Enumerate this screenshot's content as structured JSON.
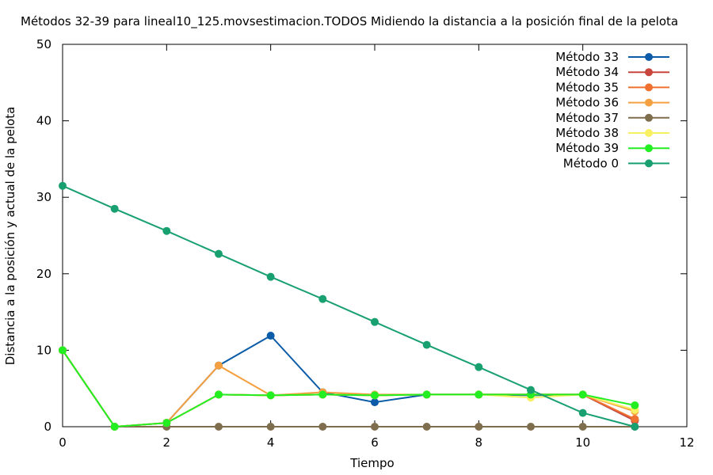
{
  "chart_data": {
    "type": "line",
    "title": "Métodos 32-39 para lineal10_125.movsestimacion.TODOS Midiendo la distancia a la posición final de la pelota",
    "xlabel": "Tiempo",
    "ylabel": "Distancia a la posición y actual de la pelota",
    "xlim": [
      0,
      12
    ],
    "ylim": [
      0,
      50
    ],
    "xticks": [
      0,
      2,
      4,
      6,
      8,
      10,
      12
    ],
    "yticks": [
      0,
      10,
      20,
      30,
      40,
      50
    ],
    "x": [
      0,
      1,
      2,
      3,
      4,
      5,
      6,
      7,
      8,
      9,
      10,
      11
    ],
    "legend_position": "top-right",
    "series": [
      {
        "name": "Método 33",
        "color": "#0b5ca8",
        "values": [
          10,
          0,
          0.5,
          8,
          11.9,
          4.5,
          3.2,
          4.2,
          4.2,
          4.1,
          4.2,
          0.8
        ]
      },
      {
        "name": "Método 34",
        "color": "#c8463b",
        "values": [
          10,
          0,
          0.5,
          4.2,
          4.1,
          4.2,
          4.1,
          4.2,
          4.2,
          4.2,
          4.2,
          0.8
        ]
      },
      {
        "name": "Método 35",
        "color": "#f07030",
        "values": [
          10,
          0,
          0.5,
          4.2,
          4.1,
          4.2,
          4.1,
          4.2,
          4.2,
          4.2,
          4.2,
          1.0
        ]
      },
      {
        "name": "Método 36",
        "color": "#f5a040",
        "values": [
          10,
          0,
          0.5,
          8,
          4.1,
          4.5,
          4.2,
          4.2,
          4.2,
          4.2,
          4.2,
          2.0
        ]
      },
      {
        "name": "Método 37",
        "color": "#7e6e4e",
        "values": [
          10,
          0,
          0,
          0,
          0,
          0,
          0,
          0,
          0,
          0,
          0,
          0
        ]
      },
      {
        "name": "Método 38",
        "color": "#f8f060",
        "values": [
          10,
          0,
          0.5,
          4.2,
          4.1,
          4.2,
          4.1,
          4.2,
          4.2,
          3.8,
          4.2,
          2.2
        ]
      },
      {
        "name": "Método 39",
        "color": "#22ee22",
        "values": [
          10,
          0,
          0.5,
          4.2,
          4.1,
          4.2,
          4.1,
          4.2,
          4.2,
          4.2,
          4.2,
          2.8
        ]
      },
      {
        "name": "Método 0",
        "color": "#18a070",
        "values": [
          31.5,
          28.5,
          25.6,
          22.6,
          19.6,
          16.7,
          13.7,
          10.7,
          7.8,
          4.8,
          1.8,
          0
        ]
      }
    ]
  }
}
